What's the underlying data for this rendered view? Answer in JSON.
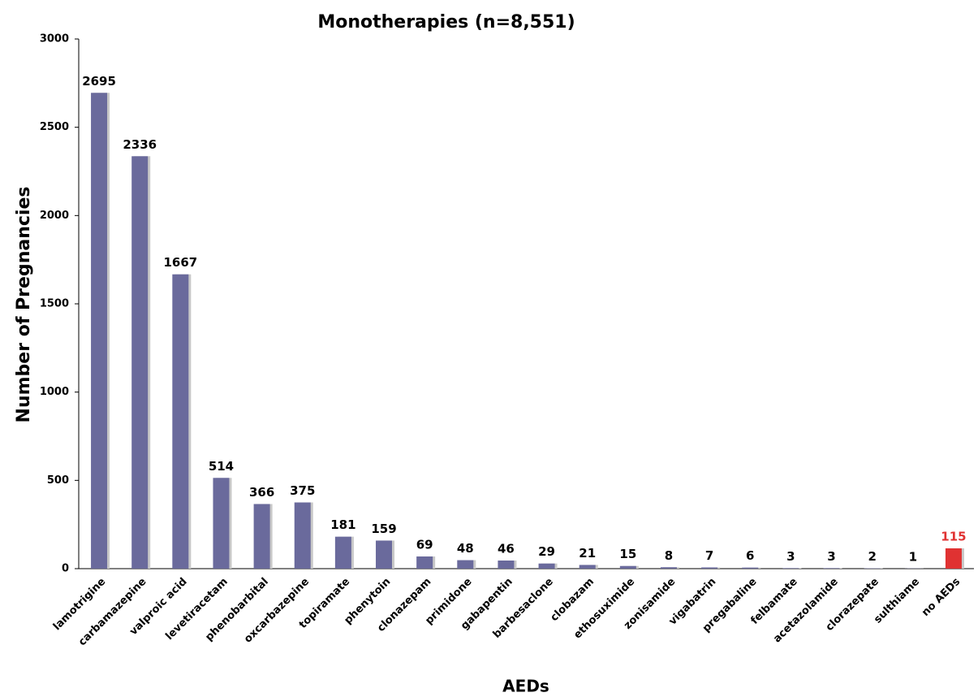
{
  "chart_data": {
    "type": "bar",
    "title": "Monotherapies (n=8,551)",
    "x_label": "AEDs",
    "y_label": "Number of Pregnancies",
    "categories": [
      "lamotrigine",
      "carbamazepine",
      "valproic acid",
      "levetiracetam",
      "phenobarbital",
      "oxcarbazepine",
      "topiramate",
      "phenytoin",
      "clonazepam",
      "primidone",
      "gabapentin",
      "barbesaclone",
      "clobazam",
      "ethosuximide",
      "zonisamide",
      "vigabatrin",
      "pregabaline",
      "felbamate",
      "acetazolamide",
      "clorazepate",
      "sulthiame",
      "no AEDs"
    ],
    "values": [
      2695,
      2336,
      1667,
      514,
      366,
      375,
      181,
      159,
      69,
      48,
      46,
      29,
      21,
      15,
      8,
      7,
      6,
      3,
      3,
      2,
      1,
      115
    ],
    "colors": [
      "#6a6a9c",
      "#6a6a9c",
      "#6a6a9c",
      "#6a6a9c",
      "#6a6a9c",
      "#6a6a9c",
      "#6a6a9c",
      "#6a6a9c",
      "#6a6a9c",
      "#6a6a9c",
      "#6a6a9c",
      "#6a6a9c",
      "#6a6a9c",
      "#6a6a9c",
      "#6a6a9c",
      "#6a6a9c",
      "#6a6a9c",
      "#6a6a9c",
      "#6a6a9c",
      "#6a6a9c",
      "#6a6a9c",
      "#e03232"
    ],
    "value_label_colors": [
      "#000000",
      "#000000",
      "#000000",
      "#000000",
      "#000000",
      "#000000",
      "#000000",
      "#000000",
      "#000000",
      "#000000",
      "#000000",
      "#000000",
      "#000000",
      "#000000",
      "#000000",
      "#000000",
      "#000000",
      "#000000",
      "#000000",
      "#000000",
      "#000000",
      "#e03232"
    ],
    "ylim": [
      0,
      3000
    ],
    "yticks": [
      0,
      500,
      1000,
      1500,
      2000,
      2500,
      3000
    ],
    "grid": false
  }
}
